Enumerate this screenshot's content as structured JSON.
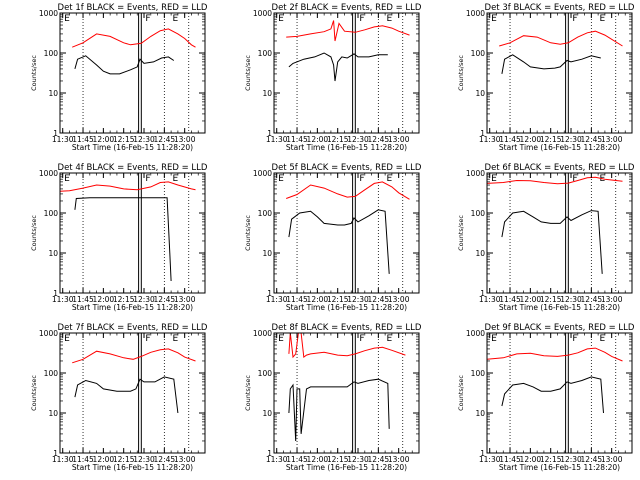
{
  "colors": {
    "events": "#000000",
    "lld": "#ff0000",
    "axes": "#000000",
    "background": "#ffffff"
  },
  "chart_data": [
    {
      "type": "line",
      "title": "Det 1f BLACK = Events, RED = LLD",
      "xlabel": "Start Time (16-Feb-15 11:28:20)",
      "ylabel": "Counts/sec",
      "yscale": "log",
      "ylim": [
        1,
        1000
      ],
      "xlim": [
        "11:28",
        "13:15"
      ],
      "xticks": [
        "11:30",
        "11:45",
        "12:00",
        "12:15",
        "12:30",
        "12:45",
        "13:00"
      ],
      "yticks": [
        "1",
        "10",
        "100",
        "1000"
      ],
      "markers": [
        "E",
        "F",
        "E"
      ],
      "series": [
        {
          "name": "LLD",
          "color": "#ff0000",
          "x": [
            "11:37",
            "11:45",
            "11:55",
            "12:05",
            "12:15",
            "12:20",
            "12:28",
            "12:35",
            "12:42",
            "12:48",
            "12:55",
            "13:00",
            "13:05",
            "13:08"
          ],
          "y": [
            140,
            180,
            300,
            260,
            180,
            160,
            175,
            260,
            360,
            400,
            300,
            230,
            160,
            140
          ]
        },
        {
          "name": "Events",
          "color": "#000000",
          "x": [
            "11:39",
            "11:41",
            "11:47",
            "11:55",
            "12:00",
            "12:05",
            "12:12",
            "12:20",
            "12:25",
            "12:27",
            "12:30",
            "12:37",
            "12:43",
            "12:48",
            "12:52"
          ],
          "y": [
            40,
            70,
            85,
            50,
            35,
            30,
            30,
            38,
            45,
            70,
            55,
            60,
            75,
            80,
            65
          ]
        }
      ]
    },
    {
      "type": "line",
      "title": "Det 2f BLACK = Events, RED = LLD",
      "xlabel": "Start Time (16-Feb-15 11:28:20)",
      "ylabel": "Counts/sec",
      "yscale": "log",
      "ylim": [
        1,
        1000
      ],
      "xlim": [
        "11:28",
        "13:15"
      ],
      "xticks": [
        "11:30",
        "11:45",
        "12:00",
        "12:15",
        "12:30",
        "12:45",
        "13:00"
      ],
      "yticks": [
        "1",
        "10",
        "100",
        "1000"
      ],
      "markers": [
        "E",
        "F",
        "E"
      ],
      "series": [
        {
          "name": "LLD",
          "color": "#ff0000",
          "x": [
            "11:37",
            "11:45",
            "11:55",
            "12:05",
            "12:10",
            "12:12",
            "12:13",
            "12:16",
            "12:20",
            "12:28",
            "12:35",
            "12:42",
            "12:48",
            "12:55",
            "13:00",
            "13:08"
          ],
          "y": [
            250,
            260,
            300,
            340,
            400,
            650,
            200,
            550,
            350,
            330,
            380,
            450,
            480,
            420,
            350,
            280
          ]
        },
        {
          "name": "Events",
          "color": "#000000",
          "x": [
            "11:39",
            "11:42",
            "11:50",
            "11:58",
            "12:05",
            "12:10",
            "12:12",
            "12:13",
            "12:15",
            "12:18",
            "12:22",
            "12:27",
            "12:30",
            "12:38",
            "12:45",
            "12:52"
          ],
          "y": [
            45,
            55,
            70,
            80,
            100,
            80,
            50,
            20,
            60,
            80,
            75,
            95,
            80,
            80,
            90,
            90
          ]
        }
      ]
    },
    {
      "type": "line",
      "title": "Det 3f BLACK = Events, RED = LLD",
      "xlabel": "Start Time (16-Feb-15 11:28:20)",
      "ylabel": "Counts/sec",
      "yscale": "log",
      "ylim": [
        1,
        1000
      ],
      "xlim": [
        "11:28",
        "13:15"
      ],
      "xticks": [
        "11:30",
        "11:45",
        "12:00",
        "12:15",
        "12:30",
        "12:45",
        "13:00"
      ],
      "yticks": [
        "1",
        "10",
        "100",
        "1000"
      ],
      "markers": [
        "E",
        "F",
        "E"
      ],
      "series": [
        {
          "name": "LLD",
          "color": "#ff0000",
          "x": [
            "11:37",
            "11:45",
            "11:55",
            "12:05",
            "12:15",
            "12:22",
            "12:28",
            "12:35",
            "12:42",
            "12:48",
            "12:55",
            "13:00",
            "13:08"
          ],
          "y": [
            150,
            180,
            270,
            250,
            180,
            165,
            180,
            250,
            320,
            350,
            280,
            220,
            150
          ]
        },
        {
          "name": "Events",
          "color": "#000000",
          "x": [
            "11:39",
            "11:41",
            "11:47",
            "11:55",
            "12:00",
            "12:10",
            "12:18",
            "12:22",
            "12:27",
            "12:30",
            "12:38",
            "12:45",
            "12:52"
          ],
          "y": [
            30,
            70,
            90,
            60,
            45,
            40,
            42,
            45,
            65,
            60,
            70,
            85,
            75
          ]
        }
      ]
    },
    {
      "type": "line",
      "title": "Det 4f BLACK = Events, RED = LLD",
      "xlabel": "Start Time (16-Feb-15 11:28:20)",
      "ylabel": "Counts/sec",
      "yscale": "log",
      "ylim": [
        1,
        1000
      ],
      "xlim": [
        "11:28",
        "13:15"
      ],
      "xticks": [
        "11:30",
        "11:45",
        "12:00",
        "12:15",
        "12:30",
        "12:45",
        "13:00"
      ],
      "yticks": [
        "1",
        "10",
        "100",
        "1000"
      ],
      "markers": [
        "E",
        "F",
        "E"
      ],
      "series": [
        {
          "name": "LLD",
          "color": "#ff0000",
          "x": [
            "11:28",
            "11:35",
            "11:45",
            "11:55",
            "12:05",
            "12:15",
            "12:25",
            "12:35",
            "12:42",
            "12:48",
            "12:55",
            "13:05",
            "13:08"
          ],
          "y": [
            350,
            360,
            420,
            500,
            470,
            400,
            380,
            450,
            580,
            600,
            500,
            400,
            380
          ]
        },
        {
          "name": "Events",
          "color": "#000000",
          "x": [
            "11:39",
            "11:40",
            "11:50",
            "12:00",
            "12:10",
            "12:20",
            "12:30",
            "12:40",
            "12:47",
            "12:49",
            "12:50"
          ],
          "y": [
            120,
            230,
            240,
            240,
            240,
            240,
            240,
            240,
            240,
            10,
            2
          ]
        }
      ]
    },
    {
      "type": "line",
      "title": "Det 5f BLACK = Events, RED = LLD",
      "xlabel": "Start Time (16-Feb-15 11:28:20)",
      "ylabel": "Counts/sec",
      "yscale": "log",
      "ylim": [
        1,
        1000
      ],
      "xlim": [
        "11:28",
        "13:15"
      ],
      "xticks": [
        "11:30",
        "11:45",
        "12:00",
        "12:15",
        "12:30",
        "12:45",
        "13:00"
      ],
      "yticks": [
        "1",
        "10",
        "100",
        "1000"
      ],
      "markers": [
        "E",
        "F",
        "E"
      ],
      "series": [
        {
          "name": "LLD",
          "color": "#ff0000",
          "x": [
            "11:37",
            "11:45",
            "11:55",
            "12:05",
            "12:15",
            "12:22",
            "12:28",
            "12:35",
            "12:42",
            "12:48",
            "12:55",
            "13:00",
            "13:08"
          ],
          "y": [
            230,
            290,
            500,
            420,
            300,
            250,
            260,
            380,
            550,
            600,
            450,
            320,
            220
          ]
        },
        {
          "name": "Events",
          "color": "#000000",
          "x": [
            "11:39",
            "11:41",
            "11:47",
            "11:55",
            "12:00",
            "12:05",
            "12:15",
            "12:20",
            "12:25",
            "12:27",
            "12:30",
            "12:38",
            "12:45",
            "12:50",
            "12:53"
          ],
          "y": [
            25,
            70,
            100,
            110,
            80,
            55,
            50,
            50,
            55,
            75,
            60,
            85,
            120,
            110,
            3
          ]
        }
      ]
    },
    {
      "type": "line",
      "title": "Det 6f BLACK = Events, RED = LLD",
      "xlabel": "Start Time (16-Feb-15 11:28:20)",
      "ylabel": "Counts/sec",
      "yscale": "log",
      "ylim": [
        1,
        1000
      ],
      "xlim": [
        "11:28",
        "13:15"
      ],
      "xticks": [
        "11:30",
        "11:45",
        "12:00",
        "12:15",
        "12:30",
        "12:45",
        "13:00"
      ],
      "yticks": [
        "1",
        "10",
        "100",
        "1000"
      ],
      "markers": [
        "E",
        "F",
        "E"
      ],
      "series": [
        {
          "name": "LLD",
          "color": "#ff0000",
          "x": [
            "11:28",
            "11:40",
            "11:50",
            "12:00",
            "12:10",
            "12:20",
            "12:28",
            "12:35",
            "12:42",
            "12:48",
            "12:55",
            "13:08"
          ],
          "y": [
            550,
            580,
            650,
            640,
            580,
            540,
            560,
            650,
            760,
            780,
            700,
            620
          ]
        },
        {
          "name": "Events",
          "color": "#000000",
          "x": [
            "11:39",
            "11:41",
            "11:47",
            "11:55",
            "12:02",
            "12:08",
            "12:15",
            "12:22",
            "12:27",
            "12:30",
            "12:38",
            "12:45",
            "12:50",
            "12:53"
          ],
          "y": [
            25,
            60,
            100,
            110,
            80,
            60,
            55,
            55,
            80,
            65,
            90,
            115,
            110,
            3
          ]
        }
      ]
    },
    {
      "type": "line",
      "title": "Det 7f BLACK = Events, RED = LLD",
      "xlabel": "Start Time (16-Feb-15 11:28:20)",
      "ylabel": "Counts/sec",
      "yscale": "log",
      "ylim": [
        1,
        1000
      ],
      "xlim": [
        "11:28",
        "13:15"
      ],
      "xticks": [
        "11:30",
        "11:45",
        "12:00",
        "12:15",
        "12:30",
        "12:45",
        "13:00"
      ],
      "yticks": [
        "1",
        "10",
        "100",
        "1000"
      ],
      "markers": [
        "E",
        "F",
        "E"
      ],
      "series": [
        {
          "name": "LLD",
          "color": "#ff0000",
          "x": [
            "11:37",
            "11:45",
            "11:55",
            "12:05",
            "12:15",
            "12:22",
            "12:28",
            "12:35",
            "12:42",
            "12:48",
            "12:55",
            "13:00",
            "13:08"
          ],
          "y": [
            180,
            220,
            350,
            300,
            240,
            220,
            260,
            330,
            380,
            400,
            320,
            250,
            200
          ]
        },
        {
          "name": "Events",
          "color": "#000000",
          "x": [
            "11:39",
            "11:41",
            "11:47",
            "11:55",
            "12:00",
            "12:10",
            "12:20",
            "12:24",
            "12:27",
            "12:30",
            "12:38",
            "12:45",
            "12:52",
            "12:55"
          ],
          "y": [
            25,
            50,
            65,
            55,
            40,
            35,
            35,
            40,
            70,
            60,
            60,
            80,
            70,
            10
          ]
        }
      ]
    },
    {
      "type": "line",
      "title": "Det 8f BLACK = Events, RED = LLD",
      "xlabel": "Start Time (16-Feb-15 11:28:20)",
      "ylabel": "Counts/sec",
      "yscale": "log",
      "ylim": [
        1,
        1000
      ],
      "xlim": [
        "11:28",
        "13:15"
      ],
      "xticks": [
        "11:30",
        "11:45",
        "12:00",
        "12:15",
        "12:30",
        "12:45",
        "13:00"
      ],
      "yticks": [
        "1",
        "10",
        "100",
        "1000"
      ],
      "markers": [
        "E",
        "F",
        "E"
      ],
      "series": [
        {
          "name": "LLD",
          "color": "#ff0000",
          "x": [
            "11:39",
            "11:40",
            "11:42",
            "11:44",
            "11:46",
            "11:48",
            "11:50",
            "11:52",
            "11:55",
            "12:05",
            "12:15",
            "12:22",
            "12:28",
            "12:35",
            "12:42",
            "12:48",
            "12:55",
            "13:05"
          ],
          "y": [
            300,
            1000,
            250,
            300,
            1000,
            1000,
            250,
            280,
            300,
            330,
            280,
            270,
            300,
            360,
            420,
            440,
            370,
            280
          ]
        },
        {
          "name": "Events",
          "color": "#000000",
          "x": [
            "11:39",
            "11:40",
            "11:42",
            "11:44",
            "11:45",
            "11:47",
            "11:48",
            "11:52",
            "11:55",
            "12:05",
            "12:15",
            "12:22",
            "12:27",
            "12:30",
            "12:38",
            "12:45",
            "12:52",
            "12:53"
          ],
          "y": [
            10,
            40,
            50,
            2,
            40,
            40,
            3,
            40,
            45,
            45,
            45,
            45,
            60,
            55,
            65,
            70,
            55,
            4
          ]
        }
      ]
    },
    {
      "type": "line",
      "title": "Det 9f BLACK = Events, RED = LLD",
      "xlabel": "Start Time (16-Feb-15 11:28:20)",
      "ylabel": "Counts/sec",
      "yscale": "log",
      "ylim": [
        1,
        1000
      ],
      "xlim": [
        "11:28",
        "13:15"
      ],
      "xticks": [
        "11:30",
        "11:45",
        "12:00",
        "12:15",
        "12:30",
        "12:45",
        "13:00"
      ],
      "yticks": [
        "1",
        "10",
        "100",
        "1000"
      ],
      "markers": [
        "E",
        "F",
        "E"
      ],
      "series": [
        {
          "name": "LLD",
          "color": "#ff0000",
          "x": [
            "11:28",
            "11:40",
            "11:50",
            "12:00",
            "12:10",
            "12:20",
            "12:28",
            "12:35",
            "12:42",
            "12:48",
            "12:55",
            "13:00",
            "13:08"
          ],
          "y": [
            220,
            240,
            300,
            310,
            270,
            260,
            280,
            320,
            400,
            420,
            330,
            260,
            200
          ]
        },
        {
          "name": "Events",
          "color": "#000000",
          "x": [
            "11:39",
            "11:41",
            "11:47",
            "11:55",
            "12:02",
            "12:08",
            "12:15",
            "12:22",
            "12:27",
            "12:30",
            "12:38",
            "12:45",
            "12:52",
            "12:54"
          ],
          "y": [
            15,
            30,
            50,
            55,
            45,
            35,
            35,
            40,
            60,
            55,
            65,
            80,
            70,
            10
          ]
        }
      ]
    }
  ]
}
